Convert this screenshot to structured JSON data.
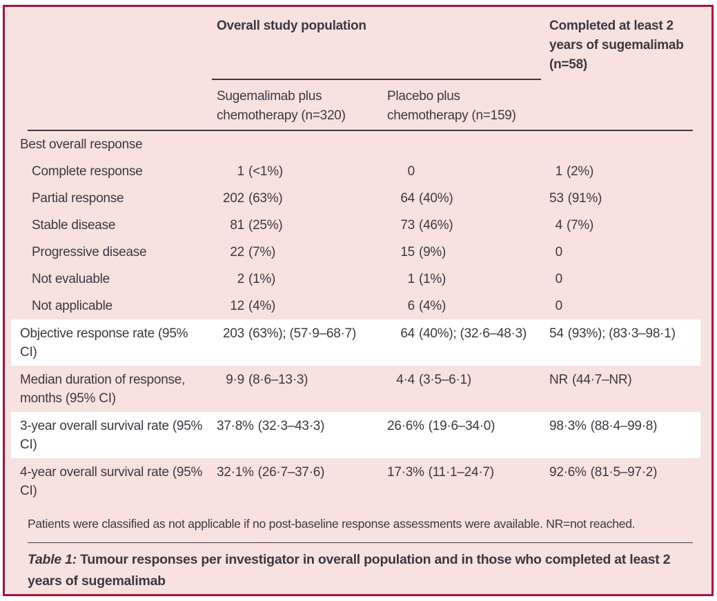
{
  "table": {
    "spanner_header": "Overall study population",
    "col4_header": "Completed at least 2\nyears of sugemalimab\n(n=58)",
    "columns": [
      "Sugemalimab plus\nchemotherapy (n=320)",
      "Placebo plus\nchemotherapy (n=159)"
    ],
    "rows": [
      {
        "label": "Best overall response",
        "type": "section",
        "indent": false,
        "highlight": false,
        "cells": []
      },
      {
        "label": "Complete response",
        "type": "single",
        "indent": true,
        "highlight": false,
        "cells": [
          "1 (<1%)",
          "0",
          "1 (2%)"
        ]
      },
      {
        "label": "Partial response",
        "type": "single",
        "indent": true,
        "highlight": false,
        "cells": [
          "202 (63%)",
          "64 (40%)",
          "53 (91%)"
        ]
      },
      {
        "label": "Stable disease",
        "type": "single",
        "indent": true,
        "highlight": false,
        "cells": [
          "81 (25%)",
          "73 (46%)",
          "4 (7%)"
        ]
      },
      {
        "label": "Progressive disease",
        "type": "single",
        "indent": true,
        "highlight": false,
        "cells": [
          "22 (7%)",
          "15 (9%)",
          "0"
        ]
      },
      {
        "label": "Not evaluable",
        "type": "single",
        "indent": true,
        "highlight": false,
        "cells": [
          "2 (1%)",
          "1 (1%)",
          "0"
        ]
      },
      {
        "label": "Not applicable",
        "type": "single",
        "indent": true,
        "highlight": false,
        "cells": [
          "12 (4%)",
          "6 (4%)",
          "0"
        ]
      },
      {
        "label": "Objective response rate (95% CI)",
        "type": "double",
        "indent": false,
        "highlight": true,
        "cells": [
          "203 (63%); (57·9–68·7)",
          "64 (40%); (32·6–48·3)",
          "54 (93%); (83·3–98·1)"
        ]
      },
      {
        "label": "Median duration of response, months (95% CI)",
        "type": "double",
        "indent": false,
        "highlight": false,
        "cells": [
          "9·9 (8·6–13·3)",
          "4·4 (3·5–6·1)",
          "NR (44·7–NR)"
        ]
      },
      {
        "label": "3-year overall survival rate (95% CI)",
        "type": "double",
        "indent": false,
        "highlight": true,
        "cells": [
          "37·8% (32·3–43·3)",
          "26·6% (19·6–34·0)",
          "98·3% (88·4–99·8)"
        ]
      },
      {
        "label": "4-year overall survival rate (95% CI)",
        "type": "double",
        "indent": false,
        "highlight": false,
        "cells": [
          "32·1% (26·7–37·6)",
          "17·3% (11·1–24·7)",
          "92·6% (81·5–97·2)"
        ]
      }
    ]
  },
  "footnote": "Patients were classified as not applicable if no post-baseline response assessments were available. NR=not reached.",
  "caption": {
    "label": "Table 1:",
    "text": "Tumour responses per investigator in overall population and in those who completed at least 2 years of sugemalimab"
  },
  "colors": {
    "border": "#a31240",
    "background": "#f8e2e0",
    "highlight_row": "#ffffff",
    "text": "#3b3742"
  }
}
